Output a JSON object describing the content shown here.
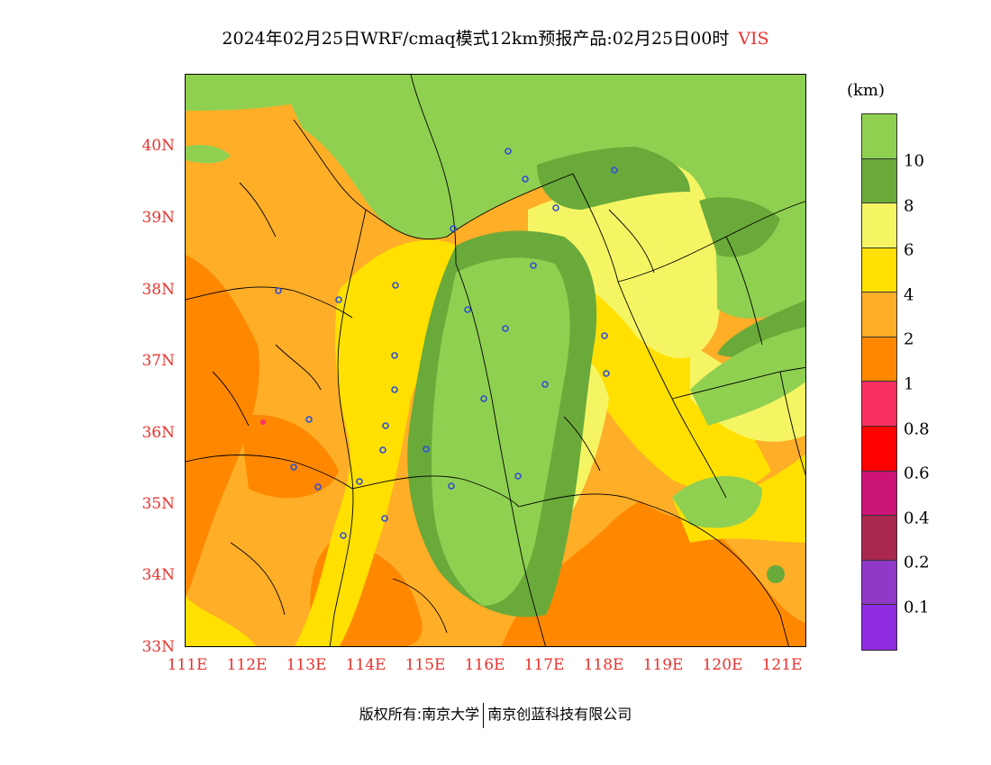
{
  "title": {
    "main": "2024年02月25日WRF/cmaq模式12km预报产品:02月25日00时",
    "variable": "VIS"
  },
  "axes": {
    "lat_labels": [
      "40N",
      "39N",
      "38N",
      "37N",
      "36N",
      "35N",
      "34N",
      "33N"
    ],
    "lon_labels": [
      "111E",
      "112E",
      "113E",
      "114E",
      "115E",
      "116E",
      "117E",
      "118E",
      "119E",
      "120E",
      "121E"
    ],
    "lat_range": [
      33,
      41
    ],
    "lon_range": [
      111,
      121.4
    ]
  },
  "legend": {
    "unit": "(km)",
    "levels": [
      {
        "label": "",
        "color": "#90d050"
      },
      {
        "label": "10",
        "color": "#6aaa3a"
      },
      {
        "label": "8",
        "color": "#f5f564"
      },
      {
        "label": "6",
        "color": "#ffe000"
      },
      {
        "label": "4",
        "color": "#ffae28"
      },
      {
        "label": "2",
        "color": "#ff8800"
      },
      {
        "label": "1",
        "color": "#f83060"
      },
      {
        "label": "0.8",
        "color": "#ff0000"
      },
      {
        "label": "0.6",
        "color": "#cc1478"
      },
      {
        "label": "0.4",
        "color": "#a82850"
      },
      {
        "label": "0.2",
        "color": "#9038c8"
      },
      {
        "label": "0.1",
        "color": "#8e2ae0"
      }
    ]
  },
  "footer": {
    "left": "版权所有:南京大学",
    "right": "南京创蓝科技有限公司"
  }
}
